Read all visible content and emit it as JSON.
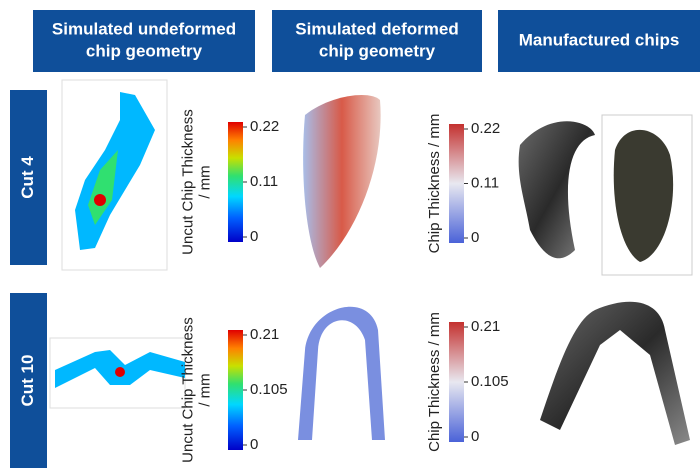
{
  "columns": [
    {
      "lines": [
        "Simulated undeformed",
        "chip geometry"
      ]
    },
    {
      "lines": [
        "Simulated deformed",
        "chip geometry"
      ]
    },
    {
      "lines": [
        "Manufactured chips"
      ]
    }
  ],
  "rows": [
    {
      "label": "Cut 4",
      "colorbars": [
        {
          "title_lines": [
            "Uncut Chip Thickness",
            "/ mm"
          ],
          "ticks": [
            0.22,
            0.11,
            0
          ],
          "colormap": "jet"
        },
        {
          "title_lines": [
            "Chip Thickness / mm"
          ],
          "ticks": [
            0.22,
            0.11,
            0
          ],
          "colormap": "coolwarm"
        }
      ]
    },
    {
      "label": "Cut 10",
      "colorbars": [
        {
          "title_lines": [
            "Uncut Chip Thickness",
            "/ mm"
          ],
          "ticks": [
            0.21,
            0.105,
            0
          ],
          "colormap": "jet"
        },
        {
          "title_lines": [
            "Chip Thickness / mm"
          ],
          "ticks": [
            0.21,
            0.105,
            0
          ],
          "colormap": "coolwarm"
        }
      ]
    }
  ]
}
